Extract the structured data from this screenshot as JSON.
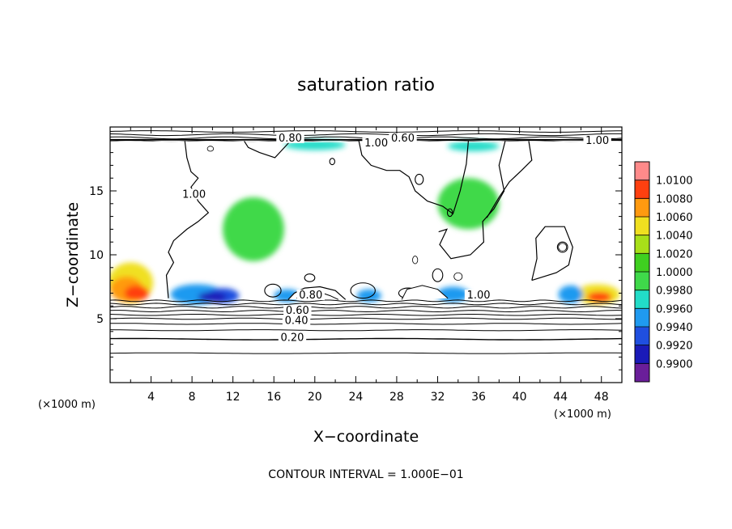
{
  "chart_data": {
    "type": "heatmap",
    "title": "saturation ratio",
    "xlabel": "X−coordinate",
    "ylabel": "Z−coordinate",
    "x_unit_left": "(×1000 m)",
    "x_unit_right": "(×1000 m)",
    "xlim": [
      0,
      50
    ],
    "ylim": [
      0,
      20
    ],
    "x_ticks": [
      4,
      8,
      12,
      16,
      20,
      24,
      28,
      32,
      36,
      40,
      44,
      48
    ],
    "y_ticks": [
      5,
      10,
      15
    ],
    "grid": false,
    "footer": "CONTOUR INTERVAL = 1.000E−01",
    "colorbar": {
      "placement": "right",
      "levels": [
        "0.9900",
        "0.9920",
        "0.9940",
        "0.9960",
        "0.9980",
        "1.0000",
        "1.0020",
        "1.0040",
        "1.0060",
        "1.0080",
        "1.0100"
      ],
      "colors": [
        "#6a1e9a",
        "#1a1ab8",
        "#1f4fe0",
        "#1f9af0",
        "#22dcc8",
        "#3fd94a",
        "#3fd020",
        "#a8e019",
        "#f0e020",
        "#ff9a10",
        "#ff4010",
        "#ff8a8a"
      ]
    },
    "contour_labels": [
      {
        "text": "0.80",
        "x": 17.6,
        "y": 19.0
      },
      {
        "text": "0.60",
        "x": 28.6,
        "y": 19.0
      },
      {
        "text": "1.00",
        "x": 26.0,
        "y": 18.6
      },
      {
        "text": "1.00",
        "x": 47.6,
        "y": 18.8
      },
      {
        "text": "1.00",
        "x": 8.2,
        "y": 14.6
      },
      {
        "text": "0.80",
        "x": 19.6,
        "y": 6.7
      },
      {
        "text": "1.00",
        "x": 36.0,
        "y": 6.7
      },
      {
        "text": "0.60",
        "x": 18.3,
        "y": 5.5
      },
      {
        "text": "0.40",
        "x": 18.2,
        "y": 4.7
      },
      {
        "text": "0.20",
        "x": 17.8,
        "y": 3.4
      }
    ]
  }
}
